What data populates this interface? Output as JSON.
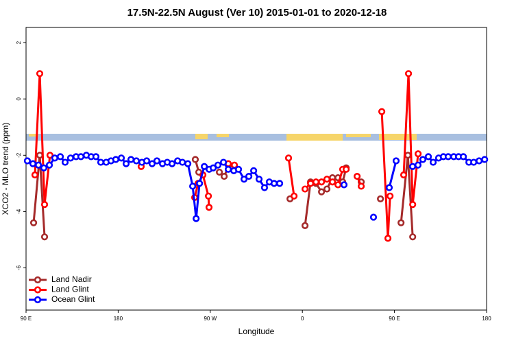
{
  "chart_data": {
    "type": "line",
    "title": "17.5N-22.5N August (Ver 10)   2015-01-01 to 2020-12-18",
    "x_label": "Longitude",
    "y_label": "XCO2 - MLO trend (ppm)",
    "xlim": [
      90,
      540
    ],
    "ylim": [
      -7.5,
      2.54
    ],
    "xticks": [
      {
        "value": 90,
        "label": "90 E"
      },
      180,
      {
        "value": 270,
        "label": "90 W"
      },
      {
        "value": 360,
        "label": "0"
      },
      {
        "value": 450,
        "label": "90 E"
      },
      {
        "value": 540,
        "label": "180"
      }
    ],
    "yticks": [
      -6,
      -4,
      -2,
      0,
      2
    ],
    "legend": "bottom-left",
    "series": [
      {
        "name": "Land Nadir",
        "color": "#a52a2a",
        "x": [
          97.4,
          103.4,
          108.1,
          null,
          255.4,
          258.8,
          null,
          278.9,
          283.6,
          288.3,
          null,
          347.9,
          null,
          362.6,
          368,
          373.3,
          378.7,
          384,
          389.4,
          394.8,
          399.4,
          402.8,
          null,
          417.5,
          null,
          436.3,
          null,
          456.4,
          463.1,
          467.8
        ],
        "values": [
          -4.4,
          -2.0,
          -4.9,
          null,
          -2.15,
          -2.6,
          null,
          -2.6,
          -2.75,
          -2.35,
          null,
          -3.55,
          null,
          -4.5,
          -2.95,
          -3.0,
          -3.3,
          -3.2,
          -2.8,
          -2.8,
          -2.95,
          -2.45,
          null,
          -2.95,
          null,
          -3.55,
          null,
          -4.4,
          -2.0,
          -4.9
        ]
      },
      {
        "name": "Land Glint",
        "color": "#ff0000",
        "x": [
          98.7,
          103.4,
          108.1,
          113.4,
          null,
          202.5,
          null,
          254.8,
          258.1,
          262.8,
          268.2,
          268.8,
          null,
          287.6,
          293.6,
          null,
          346.5,
          351.9,
          null,
          362.6,
          368,
          373.3,
          378.7,
          384,
          389.4,
          394.8,
          399.4,
          402.8,
          null,
          413.5,
          417.5,
          null,
          437.6,
          443.6,
          445.7,
          null,
          459,
          463.7,
          467.8,
          473.1
        ],
        "values": [
          -2.7,
          0.9,
          -3.75,
          -2.0,
          null,
          -2.4,
          null,
          -3.5,
          -3.0,
          -2.7,
          -3.45,
          -3.85,
          null,
          -2.3,
          -2.35,
          null,
          -2.1,
          -3.45,
          null,
          -3.2,
          -3.0,
          -2.95,
          -2.95,
          -2.85,
          -2.95,
          -3.05,
          -2.5,
          -2.5,
          null,
          -2.75,
          -3.1,
          null,
          -0.45,
          -4.95,
          -3.45,
          null,
          -2.7,
          0.9,
          -3.75,
          -1.95
        ]
      },
      {
        "name": "Ocean Glint",
        "color": "#0000ff",
        "x": [
          91.3,
          96.7,
          102.1,
          107.4,
          112.8,
          118.1,
          123.5,
          128.2,
          133.5,
          138.9,
          143.6,
          148.9,
          153.6,
          158.3,
          163,
          168.3,
          173,
          177.7,
          183.1,
          187.8,
          192.5,
          197.8,
          203.2,
          207.9,
          213.2,
          217.9,
          223.3,
          228,
          232.7,
          238.1,
          242.8,
          248.1,
          252.8,
          256.2,
          259.5,
          264.2,
          268.9,
          272.9,
          277.5,
          282.9,
          287.6,
          293,
          297.6,
          303,
          307.7,
          312.4,
          317.7,
          323,
          327.7,
          332.4,
          337.8,
          null,
          400.7,
          null,
          429.5,
          null,
          444.9,
          451.6,
          null,
          467.7,
          473,
          477.7,
          483.1,
          487.8,
          493.1,
          497.8,
          502.5,
          507.9,
          512.6,
          517.3,
          522.7,
          527.4,
          532.7,
          538.1
        ],
        "values": [
          -2.2,
          -2.3,
          -2.35,
          -2.45,
          -2.35,
          -2.1,
          -2.05,
          -2.25,
          -2.1,
          -2.05,
          -2.05,
          -2.0,
          -2.05,
          -2.05,
          -2.25,
          -2.25,
          -2.2,
          -2.15,
          -2.1,
          -2.3,
          -2.15,
          -2.2,
          -2.25,
          -2.2,
          -2.3,
          -2.2,
          -2.3,
          -2.25,
          -2.3,
          -2.2,
          -2.25,
          -2.3,
          -3.1,
          -4.25,
          -3.0,
          -2.4,
          -2.5,
          -2.45,
          -2.35,
          -2.25,
          -2.5,
          -2.55,
          -2.5,
          -2.85,
          -2.75,
          -2.55,
          -2.85,
          -3.15,
          -2.95,
          -3.0,
          -3.0,
          null,
          -3.05,
          null,
          -4.2,
          null,
          -3.15,
          -2.2,
          null,
          -2.4,
          -2.35,
          -2.15,
          -2.05,
          -2.25,
          -2.1,
          -2.05,
          -2.05,
          -2.05,
          -2.05,
          -2.05,
          -2.25,
          -2.25,
          -2.2,
          -2.15
        ]
      }
    ]
  }
}
